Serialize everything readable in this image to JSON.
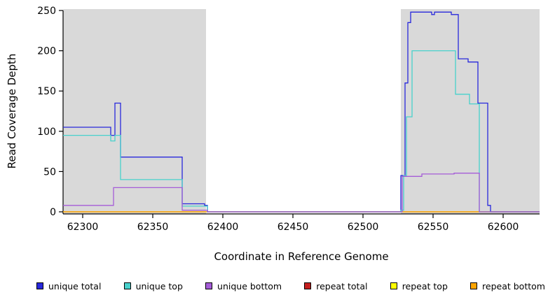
{
  "chart_data": {
    "type": "line",
    "line_style": "step",
    "xlabel": "Coordinate in Reference Genome",
    "ylabel": "Read Coverage Depth",
    "xlim": [
      62286,
      62626
    ],
    "ylim": [
      0,
      250
    ],
    "x_ticks": [
      62300,
      62350,
      62400,
      62450,
      62500,
      62550,
      62600
    ],
    "y_ticks": [
      0,
      50,
      100,
      150,
      200,
      250
    ],
    "grid": false,
    "region_color": "#d9d9d9",
    "shaded_regions": [
      {
        "from": 62286,
        "to": 62388
      },
      {
        "from": 62527,
        "to": 62626
      }
    ],
    "series": [
      {
        "name": "repeat total",
        "color": "#c41e1e",
        "points": [
          [
            62286,
            0
          ]
        ]
      },
      {
        "name": "repeat top",
        "color": "#ffff00",
        "points": [
          [
            62286,
            0
          ]
        ]
      },
      {
        "name": "repeat bottom",
        "color": "#ffa500",
        "points": [
          [
            62286,
            0
          ]
        ]
      },
      {
        "name": "unique total",
        "color": "#2828dc",
        "points": [
          [
            62286,
            105
          ],
          [
            62320,
            95
          ],
          [
            62323,
            135
          ],
          [
            62327,
            68
          ],
          [
            62371,
            10
          ],
          [
            62387,
            8
          ],
          [
            62389,
            0
          ],
          [
            62527,
            45
          ],
          [
            62530,
            160
          ],
          [
            62532,
            235
          ],
          [
            62534,
            248
          ],
          [
            62549,
            245
          ],
          [
            62551,
            248
          ],
          [
            62563,
            245
          ],
          [
            62568,
            190
          ],
          [
            62575,
            186
          ],
          [
            62582,
            135
          ],
          [
            62589,
            8
          ],
          [
            62591,
            0
          ]
        ]
      },
      {
        "name": "unique top",
        "color": "#48d1cc",
        "points": [
          [
            62286,
            95
          ],
          [
            62320,
            88
          ],
          [
            62323,
            95
          ],
          [
            62327,
            40
          ],
          [
            62371,
            7
          ],
          [
            62389,
            0
          ],
          [
            62527,
            2
          ],
          [
            62529,
            45
          ],
          [
            62531,
            118
          ],
          [
            62535,
            200
          ],
          [
            62566,
            146
          ],
          [
            62576,
            134
          ],
          [
            62583,
            0
          ]
        ]
      },
      {
        "name": "unique bottom",
        "color": "#a55cd8",
        "points": [
          [
            62286,
            8
          ],
          [
            62322,
            30
          ],
          [
            62371,
            2
          ],
          [
            62389,
            0
          ],
          [
            62528,
            44
          ],
          [
            62542,
            47
          ],
          [
            62565,
            48
          ],
          [
            62583,
            0
          ]
        ]
      }
    ],
    "legend": {
      "position": "bottom",
      "items": [
        {
          "label": "unique total",
          "color": "#2828dc"
        },
        {
          "label": "unique top",
          "color": "#48d1cc"
        },
        {
          "label": "unique bottom",
          "color": "#a55cd8"
        },
        {
          "label": "repeat total",
          "color": "#c41e1e"
        },
        {
          "label": "repeat top",
          "color": "#ffff00"
        },
        {
          "label": "repeat bottom",
          "color": "#ffa500"
        }
      ]
    }
  }
}
